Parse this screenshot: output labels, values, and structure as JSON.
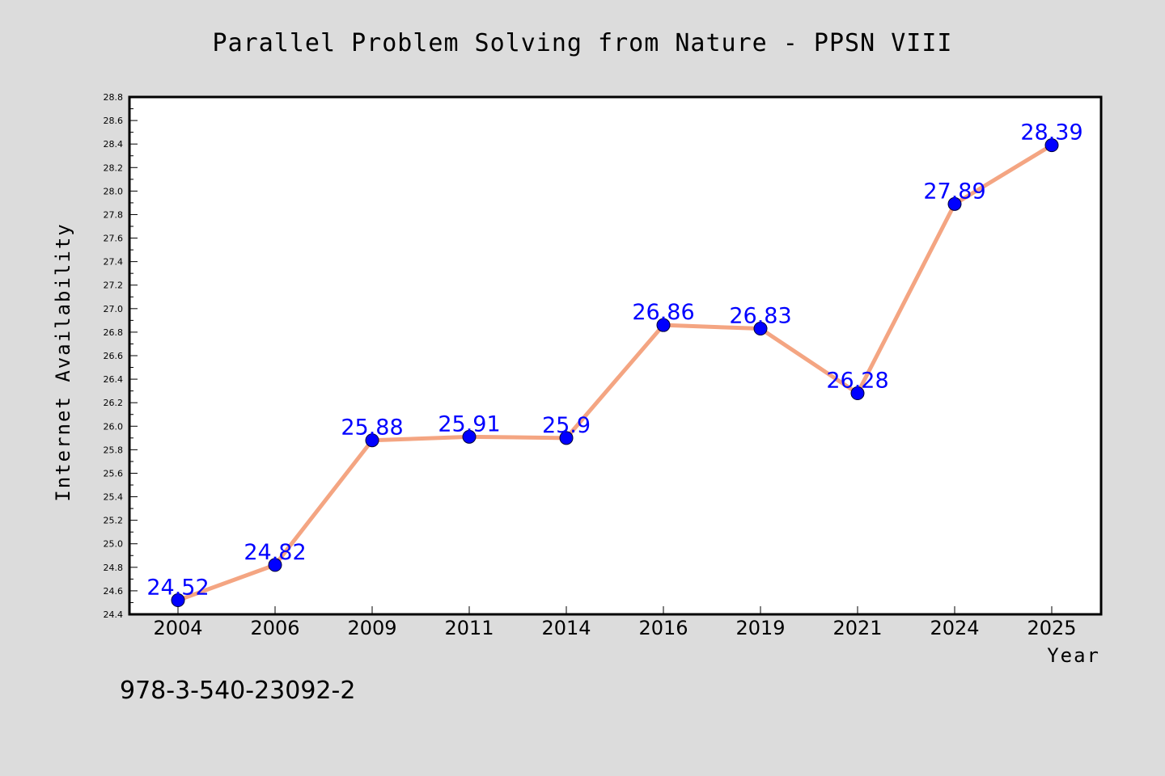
{
  "footer_text": "978-3-540-23092-2",
  "colors": {
    "background": "#dcdcdc",
    "plot_area": "#ffffff",
    "line": "#f4a582",
    "marker": "#0000ff",
    "data_label": "#0000ff"
  },
  "chart_data": {
    "type": "line",
    "title": "Parallel Problem Solving from Nature - PPSN VIII",
    "xlabel": "Year",
    "ylabel": "Internet Availability",
    "categories": [
      "2004",
      "2006",
      "2009",
      "2011",
      "2014",
      "2016",
      "2019",
      "2021",
      "2024",
      "2025"
    ],
    "series": [
      {
        "values": [
          24.52,
          24.82,
          25.88,
          25.91,
          25.9,
          26.86,
          26.83,
          26.28,
          27.89,
          28.39
        ],
        "labels": [
          "24.52",
          "24.82",
          "25.88",
          "25.91",
          "25.9",
          "26.86",
          "26.83",
          "26.28",
          "27.89",
          "28.39"
        ]
      }
    ],
    "ylim": [
      24.4,
      28.8
    ],
    "yticks": [
      "24.4",
      "24.6",
      "24.8",
      "25.0",
      "25.2",
      "25.4",
      "25.6",
      "25.8",
      "26.0",
      "26.2",
      "26.4",
      "26.6",
      "26.8",
      "27.0",
      "27.2",
      "27.4",
      "27.6",
      "27.8",
      "28.0",
      "28.2",
      "28.4",
      "28.6",
      "28.8"
    ],
    "grid": false,
    "legend": "none"
  }
}
